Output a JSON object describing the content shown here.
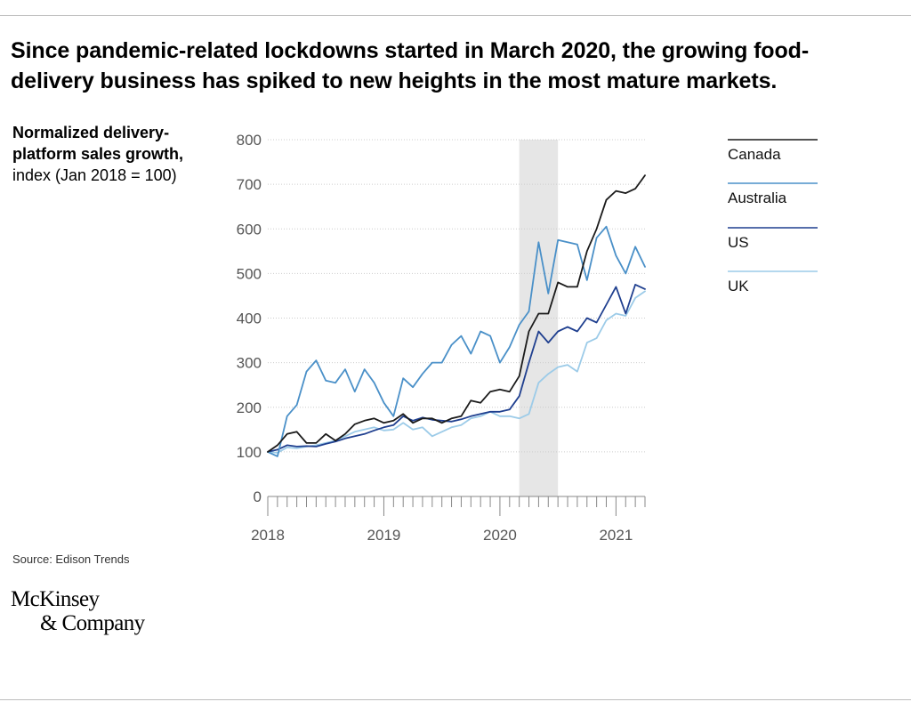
{
  "title": "Since pandemic-related lockdowns started in March 2020, the growing food-delivery business has spiked to new heights in the most mature markets.",
  "ylabel": {
    "bold": "Normalized delivery-platform sales growth,",
    "rest": " index (Jan 2018 = 100)"
  },
  "source": "Source: Edison Trends",
  "logo": {
    "line1": "McKinsey",
    "line2": "& Company"
  },
  "colors": {
    "Canada": "#1a1a1a",
    "Australia": "#4a90c8",
    "US": "#1f3f8f",
    "UK": "#9ccbe8",
    "grid": "#cccccc",
    "shade": "#e6e6e6",
    "rule": "#bdbdbd"
  },
  "chart_data": {
    "type": "line",
    "ylim": [
      0,
      800
    ],
    "yticks": [
      0,
      100,
      200,
      300,
      400,
      500,
      600,
      700,
      800
    ],
    "x_start": "2018-01",
    "x_end": "2021-04",
    "xtick_labels": [
      "2018",
      "2019",
      "2020",
      "2021"
    ],
    "shaded_period": [
      "2020-03",
      "2020-07"
    ],
    "grid": true,
    "legend_position": "right",
    "series": [
      {
        "name": "Canada",
        "values": [
          100,
          115,
          140,
          145,
          120,
          120,
          140,
          125,
          140,
          162,
          170,
          175,
          165,
          170,
          185,
          165,
          175,
          175,
          165,
          175,
          180,
          215,
          210,
          235,
          240,
          235,
          270,
          370,
          410,
          410,
          480,
          470,
          470,
          550,
          600,
          665,
          685,
          680,
          690,
          720
        ]
      },
      {
        "name": "Australia",
        "values": [
          100,
          90,
          180,
          205,
          280,
          305,
          260,
          255,
          285,
          235,
          285,
          255,
          210,
          180,
          265,
          245,
          275,
          300,
          300,
          340,
          360,
          320,
          370,
          360,
          300,
          335,
          385,
          415,
          570,
          455,
          575,
          570,
          565,
          485,
          580,
          605,
          540,
          500,
          560,
          515
        ]
      },
      {
        "name": "US",
        "values": [
          100,
          105,
          115,
          112,
          113,
          112,
          118,
          123,
          130,
          135,
          140,
          148,
          155,
          160,
          180,
          170,
          177,
          172,
          170,
          168,
          173,
          180,
          185,
          190,
          190,
          195,
          225,
          300,
          370,
          345,
          370,
          380,
          370,
          400,
          390,
          430,
          470,
          410,
          475,
          465
        ]
      },
      {
        "name": "UK",
        "values": [
          100,
          98,
          110,
          108,
          112,
          115,
          120,
          125,
          135,
          145,
          150,
          155,
          148,
          150,
          165,
          150,
          155,
          135,
          145,
          155,
          160,
          175,
          180,
          190,
          180,
          180,
          175,
          185,
          255,
          275,
          290,
          295,
          280,
          345,
          355,
          395,
          410,
          405,
          445,
          460
        ]
      }
    ]
  }
}
